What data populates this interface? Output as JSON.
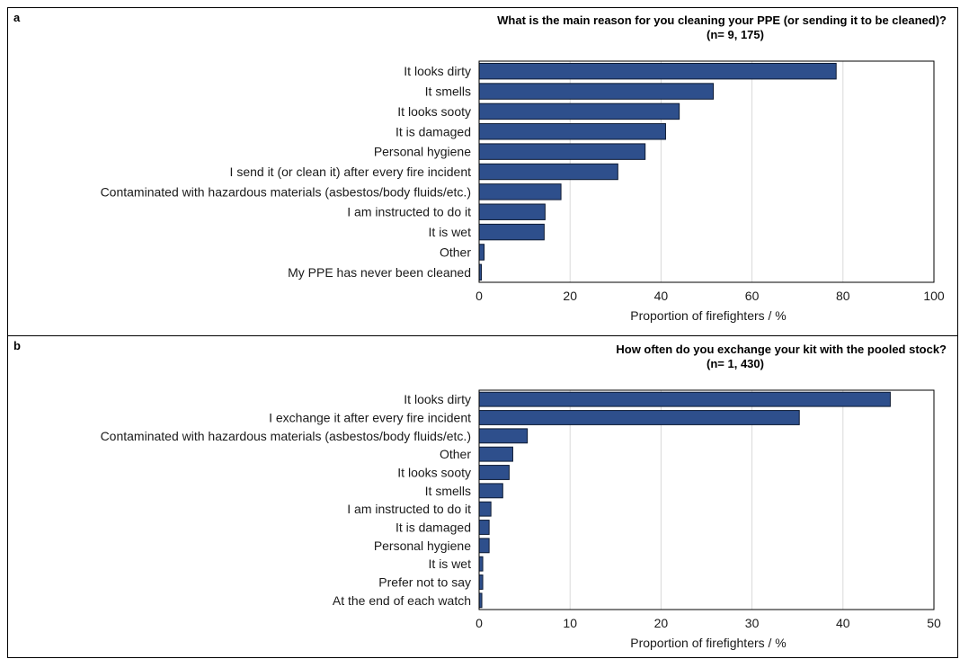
{
  "colors": {
    "bar_fill": "#2e4f8c",
    "bar_stroke": "#0d1a33",
    "grid": "#d9d9d9",
    "frame": "#000000"
  },
  "chart_data": [
    {
      "type": "bar",
      "orientation": "horizontal",
      "panel": "a",
      "title": "What is the main reason for you cleaning your PPE (or sending it to be cleaned)?",
      "subtitle": "(n= 9, 175)",
      "categories": [
        "It looks dirty",
        "It smells",
        "It looks sooty",
        "It is damaged",
        "Personal hygiene",
        "I send it (or clean it) after every fire incident",
        "Contaminated with hazardous materials (asbestos/body fluids/etc.)",
        "I am instructed to do it",
        "It is wet",
        "Other",
        "My PPE has never been cleaned"
      ],
      "values": [
        78.5,
        51.5,
        44,
        41,
        36.5,
        30.5,
        18,
        14.5,
        14.3,
        1.1,
        0.5
      ],
      "xlabel": "Proportion of firefighters / %",
      "xlim": [
        0,
        100
      ],
      "xticks": [
        "0",
        "20",
        "40",
        "60",
        "80",
        "100"
      ],
      "grid": "vertical"
    },
    {
      "type": "bar",
      "orientation": "horizontal",
      "panel": "b",
      "title": "How often do you exchange your kit with the pooled stock?",
      "subtitle": "(n= 1, 430)",
      "categories": [
        "It looks dirty",
        "I exchange it after every fire incident",
        "Contaminated with hazardous materials (asbestos/body fluids/etc.)",
        "Other",
        "It looks sooty",
        "It smells",
        "I am instructed to do it",
        "It is damaged",
        "Personal hygiene",
        "It is wet",
        "Prefer not to say",
        "At the end of each watch"
      ],
      "values": [
        45.2,
        35.2,
        5.3,
        3.7,
        3.3,
        2.6,
        1.3,
        1.1,
        1.1,
        0.4,
        0.4,
        0.3
      ],
      "xlabel": "Proportion of firefighters / %",
      "xlim": [
        0,
        50
      ],
      "xticks": [
        "0",
        "10",
        "20",
        "30",
        "40",
        "50"
      ],
      "grid": "vertical"
    }
  ]
}
